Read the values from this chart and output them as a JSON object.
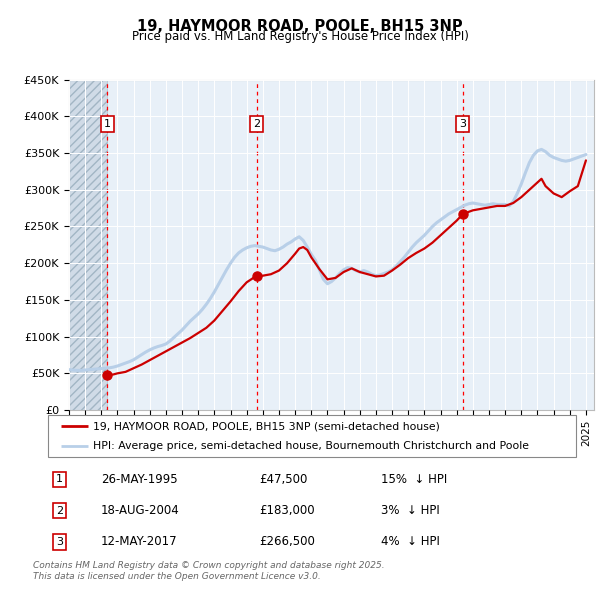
{
  "title": "19, HAYMOOR ROAD, POOLE, BH15 3NP",
  "subtitle": "Price paid vs. HM Land Registry's House Price Index (HPI)",
  "hpi_color": "#b8cfe8",
  "price_color": "#cc0000",
  "plot_bg": "#e8f0f8",
  "ylim": [
    0,
    450000
  ],
  "yticks": [
    0,
    50000,
    100000,
    150000,
    200000,
    250000,
    300000,
    350000,
    400000,
    450000
  ],
  "ytick_labels": [
    "£0",
    "£50K",
    "£100K",
    "£150K",
    "£200K",
    "£250K",
    "£300K",
    "£350K",
    "£400K",
    "£450K"
  ],
  "xlim_start": 1993.0,
  "xlim_end": 2025.5,
  "hatch_end": 1995.37,
  "sales": [
    {
      "num": 1,
      "date": "26-MAY-1995",
      "year": 1995.37,
      "price": 47500,
      "pct": "15%",
      "dir": "↓"
    },
    {
      "num": 2,
      "date": "18-AUG-2004",
      "year": 2004.62,
      "price": 183000,
      "pct": "3%",
      "dir": "↓"
    },
    {
      "num": 3,
      "date": "12-MAY-2017",
      "year": 2017.36,
      "price": 266500,
      "pct": "4%",
      "dir": "↓"
    }
  ],
  "legend_line1": "19, HAYMOOR ROAD, POOLE, BH15 3NP (semi-detached house)",
  "legend_line2": "HPI: Average price, semi-detached house, Bournemouth Christchurch and Poole",
  "footer": "Contains HM Land Registry data © Crown copyright and database right 2025.\nThis data is licensed under the Open Government Licence v3.0.",
  "hpi_data_x": [
    1993.0,
    1993.25,
    1993.5,
    1993.75,
    1994.0,
    1994.25,
    1994.5,
    1994.75,
    1995.0,
    1995.25,
    1995.5,
    1995.75,
    1996.0,
    1996.25,
    1996.5,
    1996.75,
    1997.0,
    1997.25,
    1997.5,
    1997.75,
    1998.0,
    1998.25,
    1998.5,
    1998.75,
    1999.0,
    1999.25,
    1999.5,
    1999.75,
    2000.0,
    2000.25,
    2000.5,
    2000.75,
    2001.0,
    2001.25,
    2001.5,
    2001.75,
    2002.0,
    2002.25,
    2002.5,
    2002.75,
    2003.0,
    2003.25,
    2003.5,
    2003.75,
    2004.0,
    2004.25,
    2004.5,
    2004.75,
    2005.0,
    2005.25,
    2005.5,
    2005.75,
    2006.0,
    2006.25,
    2006.5,
    2006.75,
    2007.0,
    2007.25,
    2007.5,
    2007.75,
    2008.0,
    2008.25,
    2008.5,
    2008.75,
    2009.0,
    2009.25,
    2009.5,
    2009.75,
    2010.0,
    2010.25,
    2010.5,
    2010.75,
    2011.0,
    2011.25,
    2011.5,
    2011.75,
    2012.0,
    2012.25,
    2012.5,
    2012.75,
    2013.0,
    2013.25,
    2013.5,
    2013.75,
    2014.0,
    2014.25,
    2014.5,
    2014.75,
    2015.0,
    2015.25,
    2015.5,
    2015.75,
    2016.0,
    2016.25,
    2016.5,
    2016.75,
    2017.0,
    2017.25,
    2017.5,
    2017.75,
    2018.0,
    2018.25,
    2018.5,
    2018.75,
    2019.0,
    2019.25,
    2019.5,
    2019.75,
    2020.0,
    2020.25,
    2020.5,
    2020.75,
    2021.0,
    2021.25,
    2021.5,
    2021.75,
    2022.0,
    2022.25,
    2022.5,
    2022.75,
    2023.0,
    2023.25,
    2023.5,
    2023.75,
    2024.0,
    2024.25,
    2024.5,
    2024.75,
    2025.0
  ],
  "hpi_data_y": [
    55000,
    54500,
    54000,
    54000,
    54500,
    55000,
    55500,
    56000,
    56500,
    57000,
    57500,
    58500,
    60000,
    62000,
    64000,
    66000,
    68500,
    72000,
    75500,
    79000,
    82000,
    84500,
    86500,
    88000,
    90000,
    94000,
    99000,
    104000,
    109000,
    115000,
    121000,
    126000,
    131000,
    137000,
    144000,
    152000,
    161000,
    171000,
    181000,
    191000,
    200000,
    208000,
    214000,
    218000,
    221000,
    223000,
    224000,
    223000,
    222000,
    220000,
    218000,
    217000,
    219000,
    222000,
    226000,
    229000,
    233000,
    236000,
    231000,
    222000,
    212000,
    204000,
    191000,
    178000,
    172000,
    175000,
    180000,
    186000,
    191000,
    194000,
    193000,
    190000,
    188000,
    190000,
    188000,
    185000,
    183000,
    184000,
    186000,
    188000,
    191000,
    196000,
    202000,
    208000,
    215000,
    222000,
    228000,
    233000,
    238000,
    244000,
    250000,
    255000,
    259000,
    263000,
    267000,
    270000,
    273000,
    276000,
    279000,
    281000,
    282000,
    281000,
    280000,
    279000,
    280000,
    281000,
    280000,
    280000,
    280000,
    278000,
    284000,
    295000,
    308000,
    323000,
    337000,
    347000,
    353000,
    355000,
    352000,
    347000,
    344000,
    342000,
    340000,
    339000,
    340000,
    342000,
    344000,
    346000,
    348000
  ],
  "price_line_x": [
    1995.37,
    1995.75,
    1996.0,
    1996.5,
    1997.0,
    1997.5,
    1998.0,
    1998.5,
    1999.0,
    1999.5,
    2000.0,
    2000.5,
    2001.0,
    2001.5,
    2002.0,
    2002.5,
    2003.0,
    2003.5,
    2004.0,
    2004.62,
    2005.0,
    2005.5,
    2006.0,
    2006.5,
    2007.0,
    2007.25,
    2007.5,
    2007.75,
    2008.0,
    2008.5,
    2009.0,
    2009.5,
    2010.0,
    2010.5,
    2011.0,
    2011.5,
    2012.0,
    2012.5,
    2013.0,
    2013.5,
    2014.0,
    2014.5,
    2015.0,
    2015.5,
    2016.0,
    2016.5,
    2017.0,
    2017.36,
    2017.75,
    2018.0,
    2018.5,
    2019.0,
    2019.5,
    2020.0,
    2020.5,
    2021.0,
    2021.5,
    2022.0,
    2022.25,
    2022.5,
    2023.0,
    2023.5,
    2024.0,
    2024.5,
    2025.0
  ],
  "price_line_y": [
    47500,
    48500,
    50000,
    52000,
    57000,
    62000,
    68000,
    74000,
    80000,
    86000,
    92000,
    98000,
    105000,
    112000,
    122000,
    135000,
    148000,
    162000,
    174000,
    183000,
    183000,
    185000,
    190000,
    200000,
    213000,
    220000,
    222000,
    218000,
    208000,
    192000,
    178000,
    180000,
    188000,
    193000,
    188000,
    185000,
    182000,
    183000,
    190000,
    198000,
    207000,
    214000,
    220000,
    228000,
    238000,
    248000,
    258000,
    266500,
    270000,
    272000,
    274000,
    276000,
    278000,
    278000,
    282000,
    290000,
    300000,
    310000,
    315000,
    305000,
    295000,
    290000,
    298000,
    305000,
    340000
  ]
}
